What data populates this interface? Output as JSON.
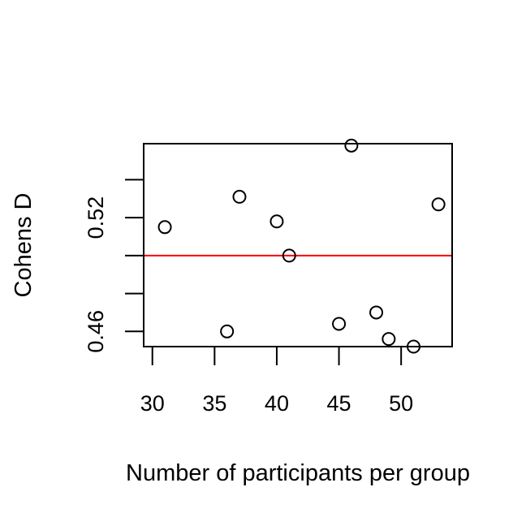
{
  "chart_data": {
    "type": "scatter",
    "xlabel": "Number of participants per group",
    "ylabel": "Cohens D",
    "xlim": [
      29.3,
      54.1
    ],
    "ylim": [
      0.452,
      0.559
    ],
    "xticks": [
      30,
      35,
      40,
      45,
      50
    ],
    "xtick_labels": [
      "30",
      "35",
      "40",
      "45",
      "50"
    ],
    "yticks": [
      0.46,
      0.48,
      0.5,
      0.52,
      0.54
    ],
    "ytick_labels": [
      "0.46",
      "",
      "",
      "0.52",
      ""
    ],
    "grid": false,
    "points": [
      {
        "x": 31,
        "y": 0.515
      },
      {
        "x": 36,
        "y": 0.46
      },
      {
        "x": 37,
        "y": 0.531
      },
      {
        "x": 40,
        "y": 0.518
      },
      {
        "x": 41,
        "y": 0.5
      },
      {
        "x": 45,
        "y": 0.464
      },
      {
        "x": 46,
        "y": 0.558
      },
      {
        "x": 48,
        "y": 0.47
      },
      {
        "x": 49,
        "y": 0.456
      },
      {
        "x": 51,
        "y": 0.452
      },
      {
        "x": 53,
        "y": 0.527
      }
    ],
    "hline": {
      "y": 0.5,
      "color": "#ff0000"
    },
    "colors": {
      "points": "#000000",
      "axes": "#000000"
    }
  }
}
